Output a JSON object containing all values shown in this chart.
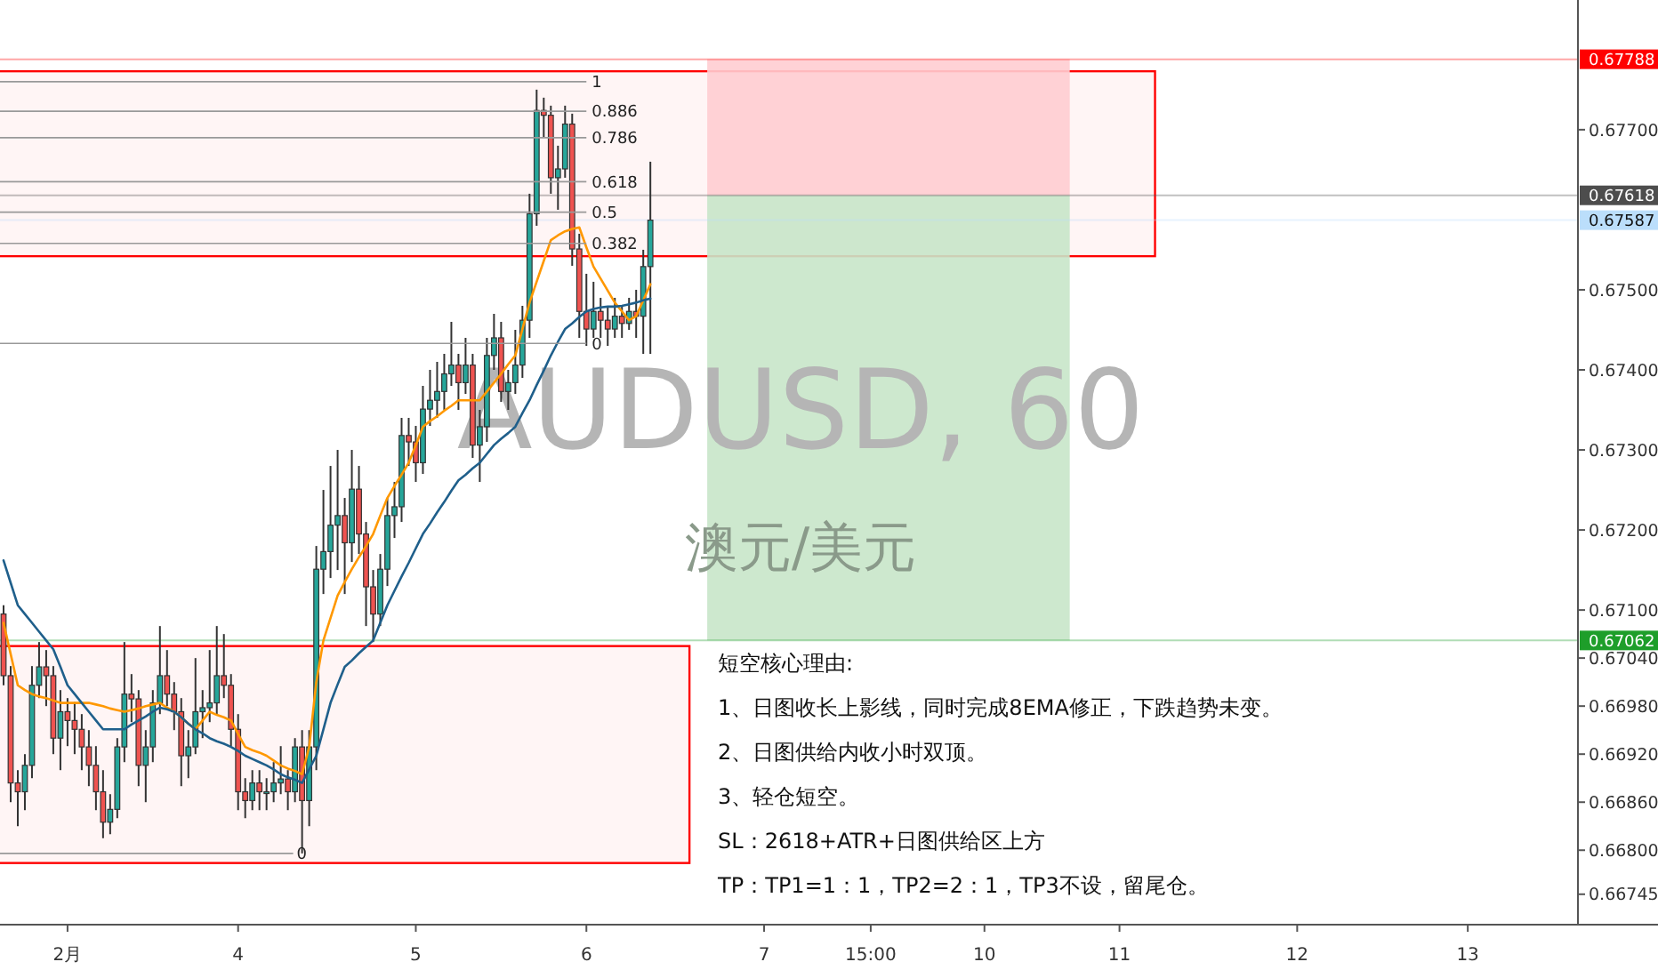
{
  "chart_data": {
    "type": "candlestick",
    "title": "AUDUSD, 60",
    "subtitle": "澳元/美元",
    "categories": [
      null,
      null,
      null,
      null,
      null,
      null,
      null,
      null,
      null,
      "2月",
      null,
      null,
      null,
      null,
      null,
      null,
      null,
      null,
      null,
      null,
      null,
      null,
      null,
      null,
      null,
      null,
      null,
      null,
      null,
      null,
      null,
      null,
      null,
      "4",
      null,
      null,
      null,
      null,
      null,
      null,
      null,
      null,
      null,
      null,
      null,
      null,
      null,
      null,
      null,
      null,
      null,
      null,
      null,
      null,
      null,
      null,
      null,
      null,
      "5",
      null,
      null,
      null,
      null,
      null,
      null,
      null,
      null,
      null,
      null,
      null,
      null,
      null,
      null,
      null,
      null,
      null,
      null,
      null,
      null,
      null,
      null,
      null,
      "6",
      null,
      null,
      null,
      null,
      null,
      null,
      null,
      null,
      null,
      null,
      null,
      null,
      null,
      null,
      null,
      null,
      null,
      null,
      null,
      null,
      null,
      null,
      null,
      null,
      "7",
      null,
      null,
      null,
      null,
      null,
      null,
      null,
      null,
      null,
      null,
      null,
      null,
      null,
      null,
      "15:00",
      null,
      null,
      null,
      null,
      null,
      null,
      null,
      null,
      null,
      null,
      null,
      null,
      null,
      null,
      null,
      "10",
      null,
      null,
      null,
      null,
      null,
      null,
      null,
      null,
      null,
      null,
      null,
      null,
      null,
      null,
      null,
      null,
      null,
      null,
      "11",
      null,
      null,
      null,
      null,
      null,
      null,
      null,
      null,
      null,
      null,
      null,
      null,
      null,
      null,
      null,
      null,
      null,
      null,
      null,
      null,
      null,
      null,
      null,
      null,
      "12",
      null,
      null,
      null,
      null,
      null,
      null,
      null,
      null,
      null,
      null,
      null,
      null,
      null,
      null,
      null,
      null,
      null,
      null,
      null,
      null,
      null,
      null,
      null,
      "13",
      null,
      null,
      null,
      null,
      null,
      null,
      null,
      null,
      null,
      null,
      null,
      null,
      null,
      null,
      null
    ],
    "ohlc": [
      [
        0.67095,
        0.67106,
        0.67006,
        0.67018
      ],
      [
        0.67018,
        0.6703,
        0.6686,
        0.66884
      ],
      [
        0.66884,
        0.669,
        0.6683,
        0.66873
      ],
      [
        0.66873,
        0.6692,
        0.6685,
        0.66906
      ],
      [
        0.66906,
        0.6703,
        0.6689,
        0.67006
      ],
      [
        0.67006,
        0.6706,
        0.6699,
        0.67029
      ],
      [
        0.67029,
        0.6705,
        0.6698,
        0.67018
      ],
      [
        0.67018,
        0.6703,
        0.6692,
        0.6694
      ],
      [
        0.6694,
        0.67,
        0.669,
        0.66973
      ],
      [
        0.66973,
        0.6699,
        0.6693,
        0.66962
      ],
      [
        0.66962,
        0.66985,
        0.6692,
        0.66951
      ],
      [
        0.66951,
        0.6697,
        0.669,
        0.66929
      ],
      [
        0.66929,
        0.6695,
        0.6688,
        0.66906
      ],
      [
        0.66906,
        0.6693,
        0.6685,
        0.66873
      ],
      [
        0.66873,
        0.669,
        0.66815,
        0.66835
      ],
      [
        0.66835,
        0.6687,
        0.6682,
        0.66851
      ],
      [
        0.66851,
        0.6694,
        0.6684,
        0.66929
      ],
      [
        0.66929,
        0.6706,
        0.6691,
        0.66995
      ],
      [
        0.66995,
        0.6702,
        0.6696,
        0.66989
      ],
      [
        0.66989,
        0.67,
        0.6688,
        0.66906
      ],
      [
        0.66906,
        0.6695,
        0.6686,
        0.66929
      ],
      [
        0.66929,
        0.67,
        0.6691,
        0.66984
      ],
      [
        0.66984,
        0.6708,
        0.6697,
        0.67018
      ],
      [
        0.67018,
        0.6705,
        0.6698,
        0.66995
      ],
      [
        0.66995,
        0.6701,
        0.6695,
        0.66973
      ],
      [
        0.66973,
        0.6699,
        0.6688,
        0.66918
      ],
      [
        0.66918,
        0.6695,
        0.6689,
        0.66929
      ],
      [
        0.66929,
        0.6704,
        0.6692,
        0.66973
      ],
      [
        0.66973,
        0.67,
        0.6694,
        0.66978
      ],
      [
        0.66978,
        0.6705,
        0.6696,
        0.66984
      ],
      [
        0.66984,
        0.6708,
        0.6697,
        0.67018
      ],
      [
        0.67018,
        0.6707,
        0.6699,
        0.67006
      ],
      [
        0.67006,
        0.6702,
        0.6693,
        0.66951
      ],
      [
        0.66951,
        0.6697,
        0.6685,
        0.66873
      ],
      [
        0.66873,
        0.6689,
        0.6684,
        0.66862
      ],
      [
        0.66862,
        0.669,
        0.6685,
        0.66884
      ],
      [
        0.66884,
        0.669,
        0.6685,
        0.66873
      ],
      [
        0.66873,
        0.6689,
        0.6685,
        0.66873
      ],
      [
        0.66873,
        0.6691,
        0.6686,
        0.66884
      ],
      [
        0.66884,
        0.6693,
        0.6687,
        0.66889
      ],
      [
        0.66889,
        0.669,
        0.6685,
        0.66873
      ],
      [
        0.66873,
        0.6694,
        0.6686,
        0.66929
      ],
      [
        0.66929,
        0.6695,
        0.66796,
        0.66862
      ],
      [
        0.66862,
        0.6695,
        0.6683,
        0.66929
      ],
      [
        0.66929,
        0.6718,
        0.669,
        0.67151
      ],
      [
        0.67151,
        0.6725,
        0.6712,
        0.67173
      ],
      [
        0.67173,
        0.6728,
        0.6714,
        0.67206
      ],
      [
        0.67206,
        0.673,
        0.6715,
        0.67218
      ],
      [
        0.67218,
        0.6724,
        0.6712,
        0.67184
      ],
      [
        0.67184,
        0.673,
        0.6716,
        0.67251
      ],
      [
        0.67251,
        0.6728,
        0.6717,
        0.67195
      ],
      [
        0.67195,
        0.6721,
        0.6708,
        0.67129
      ],
      [
        0.67129,
        0.6715,
        0.6706,
        0.67095
      ],
      [
        0.67095,
        0.6717,
        0.6708,
        0.67151
      ],
      [
        0.67151,
        0.6724,
        0.6713,
        0.67218
      ],
      [
        0.67218,
        0.6726,
        0.6719,
        0.67229
      ],
      [
        0.67229,
        0.6734,
        0.6721,
        0.67318
      ],
      [
        0.67318,
        0.6734,
        0.6728,
        0.6731
      ],
      [
        0.6731,
        0.6733,
        0.6726,
        0.67284
      ],
      [
        0.67284,
        0.6738,
        0.6727,
        0.67351
      ],
      [
        0.67351,
        0.674,
        0.6733,
        0.67362
      ],
      [
        0.67362,
        0.6741,
        0.6734,
        0.67373
      ],
      [
        0.67373,
        0.6742,
        0.6735,
        0.67395
      ],
      [
        0.67395,
        0.6746,
        0.6738,
        0.67406
      ],
      [
        0.67406,
        0.6742,
        0.6735,
        0.67384
      ],
      [
        0.67384,
        0.6744,
        0.6737,
        0.67406
      ],
      [
        0.67406,
        0.6742,
        0.6729,
        0.67306
      ],
      [
        0.67306,
        0.6735,
        0.6726,
        0.67329
      ],
      [
        0.67329,
        0.6744,
        0.6731,
        0.67418
      ],
      [
        0.67418,
        0.6747,
        0.674,
        0.6744
      ],
      [
        0.6744,
        0.6746,
        0.6736,
        0.67373
      ],
      [
        0.67373,
        0.674,
        0.6735,
        0.67384
      ],
      [
        0.67384,
        0.6745,
        0.6737,
        0.67406
      ],
      [
        0.67406,
        0.6748,
        0.6739,
        0.67462
      ],
      [
        0.67462,
        0.6762,
        0.6744,
        0.67595
      ],
      [
        0.67595,
        0.6775,
        0.6758,
        0.67724
      ],
      [
        0.67724,
        0.6774,
        0.6769,
        0.67718
      ],
      [
        0.67718,
        0.6773,
        0.6762,
        0.6764
      ],
      [
        0.6764,
        0.6768,
        0.676,
        0.67651
      ],
      [
        0.67651,
        0.6773,
        0.6764,
        0.67707
      ],
      [
        0.67707,
        0.6772,
        0.6753,
        0.67551
      ],
      [
        0.67551,
        0.6757,
        0.6744,
        0.67473
      ],
      [
        0.67473,
        0.6752,
        0.6743,
        0.67451
      ],
      [
        0.67451,
        0.6751,
        0.6744,
        0.67473
      ],
      [
        0.67473,
        0.6749,
        0.6744,
        0.67462
      ],
      [
        0.67462,
        0.6748,
        0.6743,
        0.67451
      ],
      [
        0.67451,
        0.6749,
        0.6744,
        0.67467
      ],
      [
        0.67467,
        0.6748,
        0.6744,
        0.67458
      ],
      [
        0.67458,
        0.6749,
        0.6745,
        0.67473
      ],
      [
        0.67473,
        0.675,
        0.6744,
        0.67467
      ],
      [
        0.67467,
        0.6755,
        0.6742,
        0.67529
      ],
      [
        0.67529,
        0.6766,
        0.6742,
        0.67587
      ],
      null,
      null,
      null,
      null,
      null,
      null,
      null,
      null,
      null,
      null,
      null,
      null,
      null,
      null,
      null,
      null,
      null,
      null,
      null,
      null,
      null,
      null,
      null,
      null,
      null,
      null,
      null,
      null,
      null,
      null,
      null,
      null,
      null,
      null,
      null,
      null,
      null,
      null,
      null,
      null,
      null,
      null,
      null,
      null,
      null,
      null,
      null,
      null,
      null,
      null,
      null,
      null,
      null,
      null,
      null,
      null,
      null,
      null,
      null,
      null,
      null,
      null,
      null,
      null,
      null,
      null,
      null,
      null,
      null,
      null,
      null,
      null,
      null,
      null,
      null,
      null,
      null,
      null,
      null,
      null,
      null,
      null,
      null,
      null,
      null,
      null,
      null,
      null,
      null,
      null,
      null,
      null,
      null,
      null,
      null,
      null,
      null,
      null,
      null,
      null,
      null,
      null,
      null,
      null,
      null,
      null,
      null,
      null,
      null,
      null,
      null,
      null,
      null,
      null,
      null,
      null,
      null,
      null,
      null,
      null,
      null,
      null,
      null,
      null,
      null,
      null,
      null,
      null,
      null,
      null
    ],
    "series": [
      {
        "type": "line",
        "color": "#ff9800",
        "values": [
          0.67084,
          0.67045,
          0.67006,
          0.67,
          0.66995,
          0.66992,
          0.6699,
          0.66987,
          0.66984,
          0.66984,
          0.66984,
          0.66984,
          0.66984,
          0.66982,
          0.6698,
          0.66977,
          0.66975,
          0.66973,
          0.66975,
          0.66977,
          0.6698,
          0.66982,
          0.66984,
          0.66978,
          0.66973,
          0.66966,
          0.66958,
          0.66951,
          0.66962,
          0.66973,
          0.66969,
          0.66966,
          0.66962,
          0.66945,
          0.66929,
          0.66925,
          0.66922,
          0.66918,
          0.66912,
          0.66906,
          0.66902,
          0.66899,
          0.66895,
          0.66929,
          0.6701,
          0.67062,
          0.6709,
          0.67118,
          0.67135,
          0.67151,
          0.67166,
          0.6718,
          0.67195,
          0.67218,
          0.6724,
          0.67255,
          0.67269,
          0.67284,
          0.67306,
          0.67329,
          0.67336,
          0.67342,
          0.67349,
          0.67355,
          0.67362,
          0.67362,
          0.67362,
          0.67362,
          0.67373,
          0.67384,
          0.67395,
          0.67407,
          0.67418,
          0.67451,
          0.67484,
          0.6751,
          0.67536,
          0.67562,
          0.67568,
          0.67573,
          0.67576,
          0.67578,
          0.67553,
          0.67529,
          0.67514,
          0.67499,
          0.67484,
          0.67473,
          0.67462,
          0.67467,
          0.67487,
          0.67507,
          null,
          null,
          null,
          null,
          null,
          null,
          null,
          null,
          null,
          null,
          null,
          null,
          null,
          null,
          null,
          null,
          null,
          null,
          null,
          null,
          null,
          null,
          null,
          null,
          null,
          null,
          null,
          null,
          null,
          null,
          null,
          null,
          null,
          null,
          null,
          null,
          null,
          null,
          null,
          null,
          null,
          null,
          null,
          null,
          null,
          null,
          null,
          null,
          null,
          null,
          null,
          null,
          null,
          null,
          null,
          null,
          null,
          null,
          null,
          null,
          null,
          null,
          null,
          null,
          null,
          null,
          null,
          null,
          null,
          null,
          null,
          null,
          null,
          null,
          null,
          null,
          null,
          null,
          null,
          null,
          null,
          null,
          null,
          null,
          null,
          null,
          null,
          null,
          null,
          null,
          null,
          null,
          null,
          null,
          null,
          null,
          null,
          null,
          null,
          null,
          null,
          null,
          null,
          null,
          null,
          null,
          null,
          null,
          null,
          null,
          null,
          null,
          null,
          null,
          null,
          null,
          null,
          null,
          null,
          null,
          null,
          null,
          null,
          null,
          null,
          null,
          null,
          null,
          null,
          null
        ]
      },
      {
        "type": "line",
        "color": "#1f5f8b",
        "values": [
          0.67162,
          0.67134,
          0.67106,
          0.67095,
          0.67084,
          0.67073,
          0.67062,
          0.67051,
          0.67029,
          0.67006,
          0.66995,
          0.66984,
          0.66973,
          0.66962,
          0.66951,
          0.66951,
          0.66951,
          0.66951,
          0.66957,
          0.66962,
          0.66967,
          0.66973,
          0.66978,
          0.66976,
          0.66973,
          0.66966,
          0.66958,
          0.66951,
          0.66946,
          0.6694,
          0.66936,
          0.66933,
          0.66929,
          0.66924,
          0.66918,
          0.66914,
          0.6691,
          0.66906,
          0.66901,
          0.66895,
          0.66891,
          0.66888,
          0.66884,
          0.66901,
          0.66918,
          0.66951,
          0.66984,
          0.67007,
          0.67029,
          0.67037,
          0.67046,
          0.67054,
          0.67062,
          0.67084,
          0.67106,
          0.67124,
          0.67142,
          0.67159,
          0.67177,
          0.67195,
          0.67208,
          0.67222,
          0.67235,
          0.67249,
          0.67262,
          0.67269,
          0.67277,
          0.67284,
          0.67295,
          0.67306,
          0.67314,
          0.67321,
          0.67329,
          0.67346,
          0.67362,
          0.67381,
          0.67399,
          0.67418,
          0.67435,
          0.67451,
          0.67458,
          0.67466,
          0.67473,
          0.67476,
          0.67478,
          0.67479,
          0.67479,
          0.6748,
          0.67482,
          0.67484,
          0.67487,
          0.67489,
          null,
          null,
          null,
          null,
          null,
          null,
          null,
          null,
          null,
          null,
          null,
          null,
          null,
          null,
          null,
          null,
          null,
          null,
          null,
          null,
          null,
          null,
          null,
          null,
          null,
          null,
          null,
          null,
          null,
          null,
          null,
          null,
          null,
          null,
          null,
          null,
          null,
          null,
          null,
          null,
          null,
          null,
          null,
          null,
          null,
          null,
          null,
          null,
          null,
          null,
          null,
          null,
          null,
          null,
          null,
          null,
          null,
          null,
          null,
          null,
          null,
          null,
          null,
          null,
          null,
          null,
          null,
          null,
          null,
          null,
          null,
          null,
          null,
          null,
          null,
          null,
          null,
          null,
          null,
          null,
          null,
          null,
          null,
          null,
          null,
          null,
          null,
          null,
          null,
          null,
          null,
          null,
          null,
          null,
          null,
          null,
          null,
          null,
          null,
          null,
          null,
          null,
          null,
          null,
          null,
          null,
          null,
          null,
          null,
          null,
          null,
          null,
          null,
          null,
          null,
          null,
          null,
          null,
          null,
          null,
          null,
          null,
          null,
          null,
          null,
          null,
          null,
          null,
          null,
          null
        ]
      }
    ],
    "ylim": [
      0.66707,
      0.67862
    ],
    "yticks": [
      {
        "value": 0.677,
        "label": "0.67700"
      },
      {
        "value": 0.675,
        "label": "0.67500"
      },
      {
        "value": 0.674,
        "label": "0.67400"
      },
      {
        "value": 0.673,
        "label": "0.67300"
      },
      {
        "value": 0.672,
        "label": "0.67200"
      },
      {
        "value": 0.671,
        "label": "0.67100"
      },
      {
        "value": 0.6704,
        "label": "0.67040"
      },
      {
        "value": 0.6698,
        "label": "0.66980"
      },
      {
        "value": 0.6692,
        "label": "0.66920"
      },
      {
        "value": 0.6686,
        "label": "0.66860"
      },
      {
        "value": 0.668,
        "label": "0.66800"
      },
      {
        "value": 0.66745,
        "label": "0.66745"
      }
    ],
    "ref_lines": [
      {
        "axis": "y",
        "value": 0.67788,
        "label": "0.67788",
        "color": "#ff0000"
      },
      {
        "axis": "y",
        "value": 0.67618,
        "label": "0.67618",
        "color": "#4d4d4d"
      },
      {
        "axis": "y",
        "value": 0.67587,
        "label": "0.67587",
        "color": "#bbdefb"
      },
      {
        "axis": "y",
        "value": 0.67062,
        "label": "0.67062",
        "color": "#1e9e2a"
      },
      {
        "axis": "y",
        "value": 0.6776
      },
      {
        "axis": "y",
        "value": 0.67723
      },
      {
        "axis": "y",
        "value": 0.6769
      },
      {
        "axis": "y",
        "value": 0.67635
      },
      {
        "axis": "y",
        "value": 0.67597
      },
      {
        "axis": "y",
        "value": 0.67558
      },
      {
        "axis": "y",
        "value": 0.67433
      },
      {
        "axis": "y",
        "value": 0.66796
      }
    ],
    "bands": [
      {
        "axis": "y",
        "from": 0.67542,
        "to": 0.67773,
        "color": "#ff0000"
      },
      {
        "axis": "y",
        "from": 0.66784,
        "to": 0.67055,
        "color": "#ff0000"
      },
      {
        "axis": "y",
        "from": 0.67618,
        "to": 0.67788,
        "color": "#ffcdd2"
      },
      {
        "axis": "y",
        "from": 0.67062,
        "to": 0.67618,
        "color": "#c8e6c9"
      }
    ],
    "annotations": [
      "1",
      "0.886",
      "0.786",
      "0.618",
      "0.5",
      "0.382",
      "0",
      "0",
      "短空核心理由:",
      "1、日图收长上影线，同时完成8EMA修正，下跌趋势未变。",
      "2、日图供给内收小时双顶。",
      "3、轻仓短空。",
      "SL：2618+ATR+日图供给区上方",
      "TP：TP1=1：1，TP2=2：1，TP3不设，留尾仓。"
    ]
  }
}
